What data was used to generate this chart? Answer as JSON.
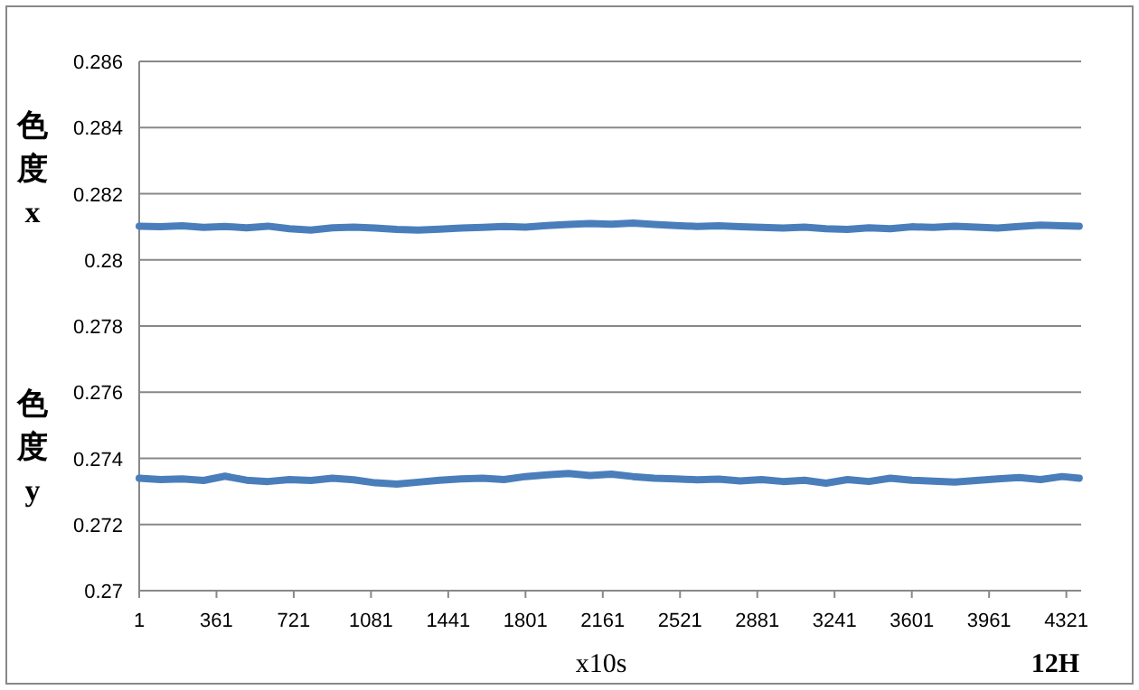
{
  "chart_data": {
    "type": "line",
    "xlabel": "x10s",
    "annotations": [
      "色度x",
      "色度y",
      "12H"
    ],
    "x": [
      1,
      101,
      201,
      301,
      401,
      501,
      601,
      701,
      801,
      901,
      1001,
      1101,
      1201,
      1301,
      1401,
      1501,
      1601,
      1701,
      1801,
      1901,
      2001,
      2101,
      2201,
      2301,
      2401,
      2501,
      2601,
      2701,
      2801,
      2901,
      3001,
      3101,
      3201,
      3301,
      3401,
      3501,
      3601,
      3701,
      3801,
      3901,
      4001,
      4101,
      4201,
      4301,
      4381
    ],
    "series": [
      {
        "color": "#4a7ebb",
        "values": [
          0.28102,
          0.281,
          0.28103,
          0.28098,
          0.28101,
          0.28097,
          0.28102,
          0.28094,
          0.2809,
          0.28097,
          0.28099,
          0.28096,
          0.28092,
          0.2809,
          0.28093,
          0.28096,
          0.28098,
          0.28101,
          0.28099,
          0.28104,
          0.28107,
          0.2811,
          0.28108,
          0.28111,
          0.28107,
          0.28104,
          0.28101,
          0.28103,
          0.281,
          0.28098,
          0.28096,
          0.28099,
          0.28094,
          0.28092,
          0.28097,
          0.28094,
          0.281,
          0.28098,
          0.28102,
          0.28099,
          0.28096,
          0.28101,
          0.28105,
          0.28103,
          0.28102
        ]
      },
      {
        "color": "#4a7ebb",
        "values": [
          0.2734,
          0.27336,
          0.27338,
          0.27333,
          0.27346,
          0.27334,
          0.2733,
          0.27336,
          0.27333,
          0.2734,
          0.27335,
          0.27326,
          0.27322,
          0.27328,
          0.27334,
          0.27338,
          0.2734,
          0.27336,
          0.27345,
          0.2735,
          0.27354,
          0.27348,
          0.27352,
          0.27345,
          0.2734,
          0.27338,
          0.27335,
          0.27337,
          0.27332,
          0.27336,
          0.2733,
          0.27334,
          0.27325,
          0.27336,
          0.2733,
          0.2734,
          0.27334,
          0.27331,
          0.27328,
          0.27333,
          0.27338,
          0.27342,
          0.27336,
          0.27345,
          0.2734
        ]
      }
    ],
    "xlim": [
      1,
      4390
    ],
    "xticks": [
      1,
      361,
      721,
      1081,
      1441,
      1801,
      2161,
      2521,
      2881,
      3241,
      3601,
      3961,
      4321
    ],
    "ylim": [
      0.27,
      0.286
    ],
    "yticks": [
      0.27,
      0.272,
      0.274,
      0.276,
      0.278,
      0.28,
      0.282,
      0.284,
      0.286
    ],
    "grid": "y",
    "marker": "none",
    "line_style": "solid"
  }
}
